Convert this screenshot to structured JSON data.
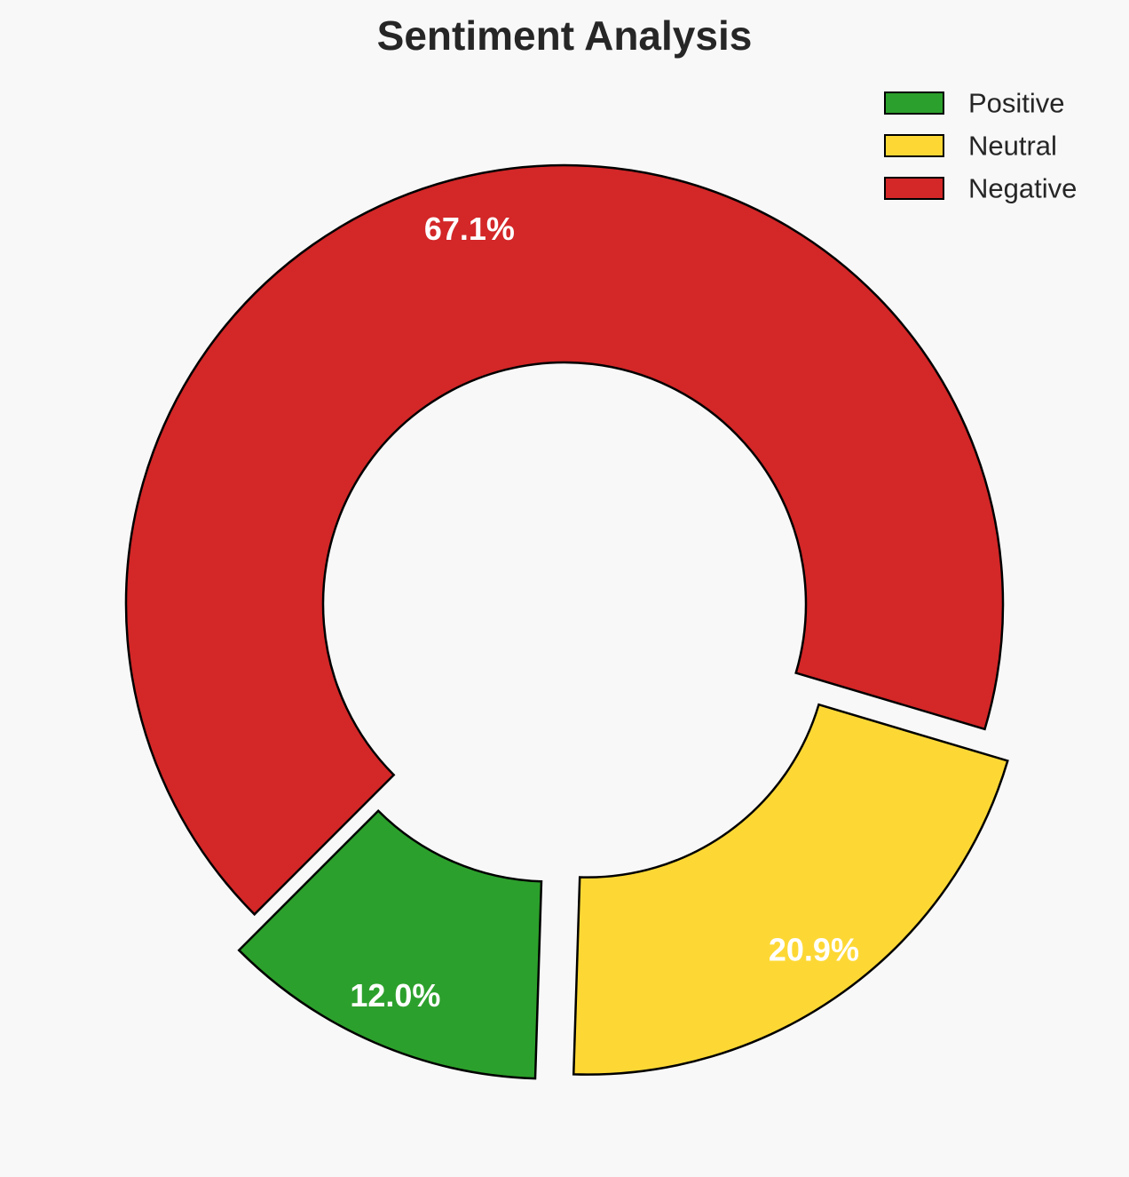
{
  "chart_data": {
    "type": "pie",
    "title": "Sentiment Analysis",
    "categories": [
      "Positive",
      "Neutral",
      "Negative"
    ],
    "values": [
      12.0,
      20.9,
      67.1
    ],
    "labels": [
      "12.0%",
      "20.9%",
      "67.1%"
    ],
    "colors": [
      "#2ca02c",
      "#fdd835",
      "#d32728"
    ],
    "donut": true,
    "exploded": [
      true,
      true,
      false
    ],
    "legend": {
      "position": "top-right",
      "entries": [
        "Positive",
        "Neutral",
        "Negative"
      ]
    }
  }
}
